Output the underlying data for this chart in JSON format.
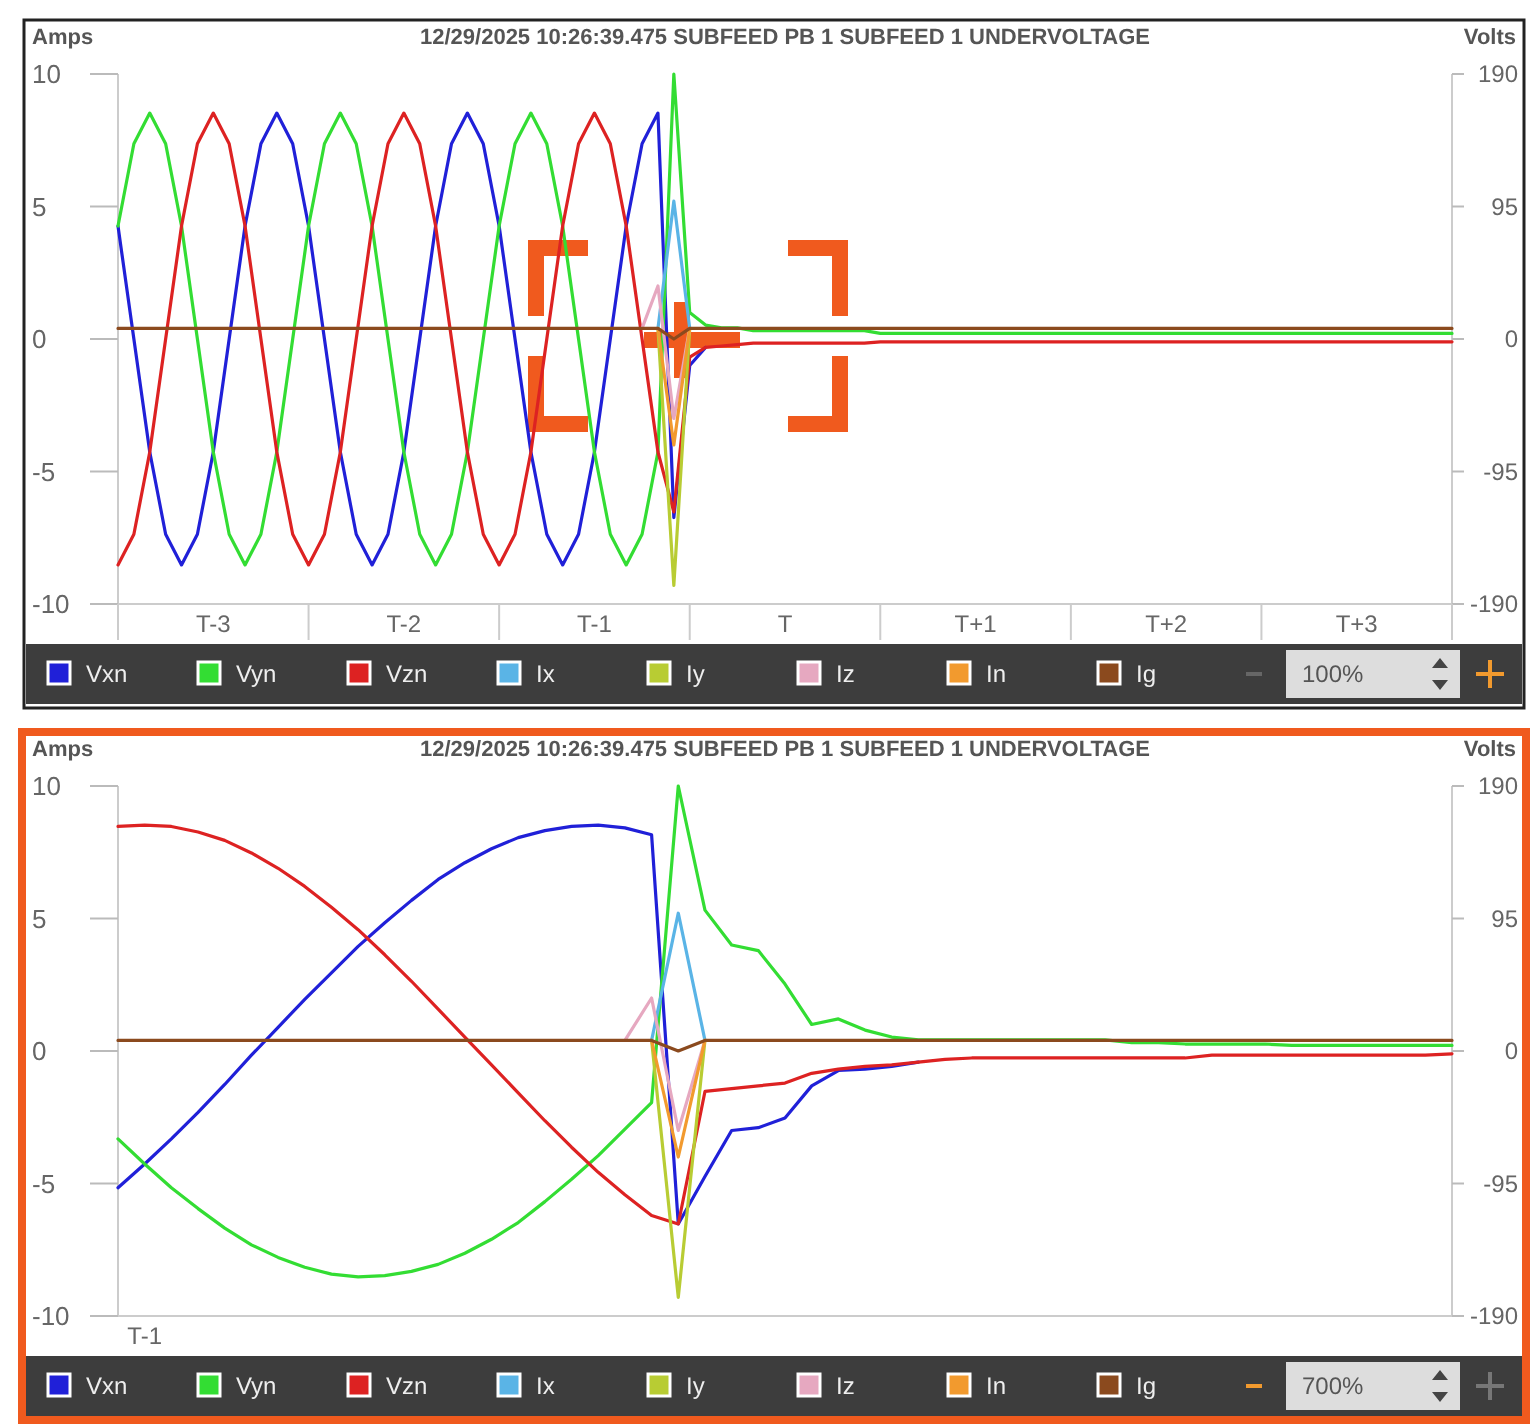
{
  "chart_data": [
    {
      "type": "line",
      "title": "12/29/2025 10:26:39.475 SUBFEED PB 1 SUBFEED 1 UNDERVOLTAGE",
      "ylabel": "Amps",
      "y2label": "Volts",
      "categories": [
        null,
        null,
        null,
        null,
        null,
        null,
        "T-3",
        null,
        null,
        null,
        null,
        null,
        null,
        null,
        null,
        null,
        null,
        null,
        "T-2",
        null,
        null,
        null,
        null,
        null,
        null,
        null,
        null,
        null,
        null,
        null,
        "T-1",
        null,
        null,
        null,
        null,
        null,
        null,
        null,
        null,
        null,
        null,
        null,
        "T",
        null,
        null,
        null,
        null,
        null,
        null,
        null,
        null,
        null,
        null,
        null,
        "T+1",
        null,
        null,
        null,
        null,
        null,
        null,
        null,
        null,
        null,
        null,
        null,
        "T+2",
        null,
        null,
        null,
        null,
        null,
        null,
        null,
        null,
        null,
        null,
        null,
        "T+3",
        null,
        null,
        null,
        null,
        null,
        null
      ],
      "ylim": [
        -10,
        10
      ],
      "yticks": [
        -10,
        -5,
        0,
        5,
        10
      ],
      "y2lim": [
        -190,
        190
      ],
      "y2ticks": [
        -190,
        -95,
        0,
        95,
        190
      ],
      "legend": "bottom",
      "annotations": [
        "100%"
      ],
      "series": [
        {
          "name": "Vxn",
          "color": "#2020d8",
          "axis": "y2",
          "values": [
            81,
            0,
            -81,
            -140,
            -162,
            -140,
            -81,
            0,
            81,
            140,
            162,
            140,
            81,
            0,
            -81,
            -140,
            -162,
            -140,
            -81,
            0,
            81,
            140,
            162,
            140,
            81,
            0,
            -81,
            -140,
            -162,
            -140,
            -81,
            0,
            81,
            140,
            162,
            -128,
            -19,
            -6,
            null,
            null,
            null,
            null,
            null,
            null,
            null,
            null,
            null,
            null,
            null,
            null,
            null,
            null,
            null,
            null,
            null,
            null,
            null,
            null,
            null,
            null,
            null,
            null,
            null,
            null,
            null,
            null,
            null,
            null,
            null,
            null,
            null,
            null,
            null,
            null,
            null,
            null,
            null,
            null,
            null,
            null,
            null,
            null,
            null,
            null,
            null
          ]
        },
        {
          "name": "Vyn",
          "color": "#33dd33",
          "axis": "y2",
          "values": [
            81,
            140,
            162,
            140,
            81,
            0,
            -81,
            -140,
            -162,
            -140,
            -81,
            0,
            81,
            140,
            162,
            140,
            81,
            0,
            -81,
            -140,
            -162,
            -140,
            -81,
            0,
            81,
            140,
            162,
            140,
            81,
            0,
            -81,
            -140,
            -162,
            -140,
            -81,
            190,
            19,
            10,
            8,
            8,
            6,
            6,
            6,
            6,
            6,
            6,
            6,
            6,
            4,
            4,
            4,
            4,
            4,
            4,
            4,
            4,
            4,
            4,
            4,
            4,
            4,
            4,
            4,
            4,
            4,
            4,
            4,
            4,
            4,
            4,
            4,
            4,
            4,
            4,
            4,
            4,
            4,
            4,
            4,
            4,
            4,
            4,
            4,
            4,
            4
          ]
        },
        {
          "name": "Vzn",
          "color": "#dd2222",
          "axis": "y2",
          "values": [
            -162,
            -140,
            -81,
            0,
            81,
            140,
            162,
            140,
            81,
            0,
            -81,
            -140,
            -162,
            -140,
            -81,
            0,
            81,
            140,
            162,
            140,
            81,
            0,
            -81,
            -140,
            -162,
            -140,
            -81,
            0,
            81,
            140,
            162,
            140,
            81,
            0,
            -81,
            -124,
            -13,
            -6,
            -5,
            -4,
            -3,
            -3,
            -3,
            -3,
            -3,
            -3,
            -3,
            -3,
            -2,
            -2,
            -2,
            -2,
            -2,
            -2,
            -2,
            -2,
            -2,
            -2,
            -2,
            -2,
            -2,
            -2,
            -2,
            -2,
            -2,
            -2,
            -2,
            -2,
            -2,
            -2,
            -2,
            -2,
            -2,
            -2,
            -2,
            -2,
            -2,
            -2,
            -2,
            -2,
            -2,
            -2,
            -2,
            -2,
            -2
          ]
        },
        {
          "name": "Ix",
          "color": "#5ab4e6",
          "values": [
            null,
            null,
            null,
            null,
            null,
            null,
            null,
            null,
            null,
            null,
            null,
            null,
            null,
            null,
            null,
            null,
            null,
            null,
            null,
            null,
            null,
            null,
            null,
            null,
            null,
            null,
            null,
            null,
            null,
            null,
            null,
            null,
            null,
            null,
            0.4,
            5.2,
            0.4,
            null,
            null,
            null,
            null,
            null,
            null,
            null,
            null,
            null,
            null,
            null,
            null,
            null,
            null,
            null,
            null,
            null,
            null,
            null,
            null,
            null,
            null,
            null,
            null,
            null,
            null,
            null,
            null,
            null,
            null,
            null,
            null,
            null,
            null,
            null,
            null,
            null,
            null,
            null,
            null,
            null,
            null,
            null,
            null,
            null,
            null,
            null,
            null
          ]
        },
        {
          "name": "Iy",
          "color": "#b8cc33",
          "values": [
            null,
            null,
            null,
            null,
            null,
            null,
            null,
            null,
            null,
            null,
            null,
            null,
            null,
            null,
            null,
            null,
            null,
            null,
            null,
            null,
            null,
            null,
            null,
            null,
            null,
            null,
            null,
            null,
            null,
            null,
            null,
            null,
            null,
            null,
            0.4,
            -9.3,
            0.4,
            null,
            null,
            null,
            null,
            null,
            null,
            null,
            null,
            null,
            null,
            null,
            null,
            null,
            null,
            null,
            null,
            null,
            null,
            null,
            null,
            null,
            null,
            null,
            null,
            null,
            null,
            null,
            null,
            null,
            null,
            null,
            null,
            null,
            null,
            null,
            null,
            null,
            null,
            null,
            null,
            null,
            null,
            null,
            null,
            null,
            null,
            null,
            null
          ]
        },
        {
          "name": "Iz",
          "color": "#e6a8c0",
          "values": [
            null,
            null,
            null,
            null,
            null,
            null,
            null,
            null,
            null,
            null,
            null,
            null,
            null,
            null,
            null,
            null,
            null,
            null,
            null,
            null,
            null,
            null,
            null,
            null,
            null,
            null,
            null,
            null,
            null,
            null,
            null,
            null,
            null,
            0.4,
            2,
            -3,
            0.4,
            null,
            null,
            null,
            null,
            null,
            null,
            null,
            null,
            null,
            null,
            null,
            null,
            null,
            null,
            null,
            null,
            null,
            null,
            null,
            null,
            null,
            null,
            null,
            null,
            null,
            null,
            null,
            null,
            null,
            null,
            null,
            null,
            null,
            null,
            null,
            null,
            null,
            null,
            null,
            null,
            null,
            null,
            null,
            null,
            null,
            null,
            null,
            null
          ]
        },
        {
          "name": "In",
          "color": "#f29a2e",
          "values": [
            null,
            null,
            null,
            null,
            null,
            null,
            null,
            null,
            null,
            null,
            null,
            null,
            null,
            null,
            null,
            null,
            null,
            null,
            null,
            null,
            null,
            null,
            null,
            null,
            null,
            null,
            null,
            null,
            null,
            null,
            null,
            null,
            null,
            null,
            0.4,
            -4,
            0.4,
            null,
            null,
            null,
            null,
            null,
            null,
            null,
            null,
            null,
            null,
            null,
            null,
            null,
            null,
            null,
            null,
            null,
            null,
            null,
            null,
            null,
            null,
            null,
            null,
            null,
            null,
            null,
            null,
            null,
            null,
            null,
            null,
            null,
            null,
            null,
            null,
            null,
            null,
            null,
            null,
            null,
            null,
            null,
            null,
            null,
            null,
            null,
            null
          ]
        },
        {
          "name": "Ig",
          "color": "#8b4a1e",
          "values": [
            0.4,
            0.4,
            0.4,
            0.4,
            0.4,
            0.4,
            0.4,
            0.4,
            0.4,
            0.4,
            0.4,
            0.4,
            0.4,
            0.4,
            0.4,
            0.4,
            0.4,
            0.4,
            0.4,
            0.4,
            0.4,
            0.4,
            0.4,
            0.4,
            0.4,
            0.4,
            0.4,
            0.4,
            0.4,
            0.4,
            0.4,
            0.4,
            0.4,
            0.4,
            0.4,
            0,
            0.4,
            0.4,
            0.4,
            0.4,
            0.4,
            0.4,
            0.4,
            0.4,
            0.4,
            0.4,
            0.4,
            0.4,
            0.4,
            0.4,
            0.4,
            0.4,
            0.4,
            0.4,
            0.4,
            0.4,
            0.4,
            0.4,
            0.4,
            0.4,
            0.4,
            0.4,
            0.4,
            0.4,
            0.4,
            0.4,
            0.4,
            0.4,
            0.4,
            0.4,
            0.4,
            0.4,
            0.4,
            0.4,
            0.4,
            0.4,
            0.4,
            0.4,
            0.4,
            0.4,
            0.4,
            0.4,
            0.4,
            0.4,
            0.4
          ]
        }
      ]
    },
    {
      "type": "line",
      "title": "12/29/2025 10:26:39.475 SUBFEED PB 1 SUBFEED 1 UNDERVOLTAGE",
      "ylabel": "Amps",
      "y2label": "Volts",
      "categories": [
        null,
        "T-1",
        null,
        null,
        null,
        null,
        null,
        null,
        null,
        null,
        null,
        null,
        null,
        null,
        null,
        null,
        null,
        null,
        null,
        null,
        null,
        null,
        null,
        null,
        null,
        null,
        null,
        null,
        null,
        null,
        null,
        null,
        null,
        null,
        null,
        null,
        null,
        null,
        null,
        null,
        null,
        null,
        null,
        null,
        null,
        null,
        null,
        null,
        null,
        null,
        null
      ],
      "ylim": [
        -10,
        10
      ],
      "yticks": [
        -10,
        -5,
        0,
        5,
        10
      ],
      "y2lim": [
        -190,
        190
      ],
      "y2ticks": [
        -190,
        -95,
        0,
        95,
        190
      ],
      "legend": "bottom",
      "annotations": [
        "700%"
      ],
      "series": [
        {
          "name": "Vxn",
          "color": "#2020d8",
          "axis": "y2",
          "values": [
            -98,
            -81,
            -63,
            -44,
            -24,
            -3,
            17,
            37,
            56,
            75,
            92,
            108,
            123,
            135,
            145,
            153,
            158,
            161,
            162,
            160,
            155,
            -124,
            -90,
            -57,
            -55,
            -48,
            -25,
            -14,
            -13,
            -11,
            -8,
            null,
            null,
            null,
            null,
            null,
            null,
            null,
            null,
            null,
            null,
            null,
            null,
            null,
            null,
            null,
            null,
            null,
            null,
            null,
            null
          ]
        },
        {
          "name": "Vyn",
          "color": "#33dd33",
          "axis": "y2",
          "values": [
            -63,
            -81,
            -98,
            -113,
            -127,
            -139,
            -148,
            -155,
            -160,
            -162,
            -161,
            -158,
            -153,
            -145,
            -135,
            -123,
            -108,
            -92,
            -75,
            -56,
            -37,
            190,
            101,
            76,
            72,
            48,
            19,
            23,
            15,
            10,
            8,
            8,
            8,
            8,
            8,
            8,
            8,
            8,
            6,
            6,
            5,
            5,
            5,
            5,
            4,
            4,
            4,
            4,
            4,
            4,
            4
          ]
        },
        {
          "name": "Vzn",
          "color": "#dd2222",
          "axis": "y2",
          "values": [
            161,
            162,
            161,
            157,
            151,
            142,
            131,
            118,
            103,
            87,
            69,
            50,
            30,
            10,
            -10,
            -30,
            -50,
            -69,
            -87,
            -103,
            -118,
            -124,
            -29,
            -27,
            -25,
            -23,
            -16,
            -13,
            -11,
            -10,
            -8,
            -6,
            -5,
            -5,
            -5,
            -5,
            -5,
            -5,
            -5,
            -5,
            -5,
            -3,
            -3,
            -3,
            -3,
            -3,
            -3,
            -3,
            -3,
            -3,
            -2
          ]
        },
        {
          "name": "Ix",
          "color": "#5ab4e6",
          "values": [
            null,
            null,
            null,
            null,
            null,
            null,
            null,
            null,
            null,
            null,
            null,
            null,
            null,
            null,
            null,
            null,
            null,
            null,
            null,
            null,
            0.4,
            5.2,
            0.4,
            null,
            null,
            null,
            null,
            null,
            null,
            null,
            null,
            null,
            null,
            null,
            null,
            null,
            null,
            null,
            null,
            null,
            null,
            null,
            null,
            null,
            null,
            null,
            null,
            null,
            null,
            null,
            null
          ]
        },
        {
          "name": "Iy",
          "color": "#b8cc33",
          "values": [
            null,
            null,
            null,
            null,
            null,
            null,
            null,
            null,
            null,
            null,
            null,
            null,
            null,
            null,
            null,
            null,
            null,
            null,
            null,
            null,
            0.4,
            -9.3,
            0.4,
            null,
            null,
            null,
            null,
            null,
            null,
            null,
            null,
            null,
            null,
            null,
            null,
            null,
            null,
            null,
            null,
            null,
            null,
            null,
            null,
            null,
            null,
            null,
            null,
            null,
            null,
            null,
            null
          ]
        },
        {
          "name": "Iz",
          "color": "#e6a8c0",
          "values": [
            null,
            null,
            null,
            null,
            null,
            null,
            null,
            null,
            null,
            null,
            null,
            null,
            null,
            null,
            null,
            null,
            null,
            null,
            null,
            0.4,
            2,
            -3,
            0.4,
            null,
            null,
            null,
            null,
            null,
            null,
            null,
            null,
            null,
            null,
            null,
            null,
            null,
            null,
            null,
            null,
            null,
            null,
            null,
            null,
            null,
            null,
            null,
            null,
            null,
            null,
            null,
            null
          ]
        },
        {
          "name": "In",
          "color": "#f29a2e",
          "values": [
            null,
            null,
            null,
            null,
            null,
            null,
            null,
            null,
            null,
            null,
            null,
            null,
            null,
            null,
            null,
            null,
            null,
            null,
            null,
            null,
            0.4,
            -4,
            0.4,
            null,
            null,
            null,
            null,
            null,
            null,
            null,
            null,
            null,
            null,
            null,
            null,
            null,
            null,
            null,
            null,
            null,
            null,
            null,
            null,
            null,
            null,
            null,
            null,
            null,
            null,
            null,
            null
          ]
        },
        {
          "name": "Ig",
          "color": "#8b4a1e",
          "values": [
            0.4,
            0.4,
            0.4,
            0.4,
            0.4,
            0.4,
            0.4,
            0.4,
            0.4,
            0.4,
            0.4,
            0.4,
            0.4,
            0.4,
            0.4,
            0.4,
            0.4,
            0.4,
            0.4,
            0.4,
            0.4,
            0,
            0.4,
            0.4,
            0.4,
            0.4,
            0.4,
            0.4,
            0.4,
            0.4,
            0.4,
            0.4,
            0.4,
            0.4,
            0.4,
            0.4,
            0.4,
            0.4,
            0.4,
            0.4,
            0.4,
            0.4,
            0.4,
            0.4,
            0.4,
            0.4,
            0.4,
            0.4,
            0.4,
            0.4,
            0.4
          ]
        }
      ]
    }
  ]
}
